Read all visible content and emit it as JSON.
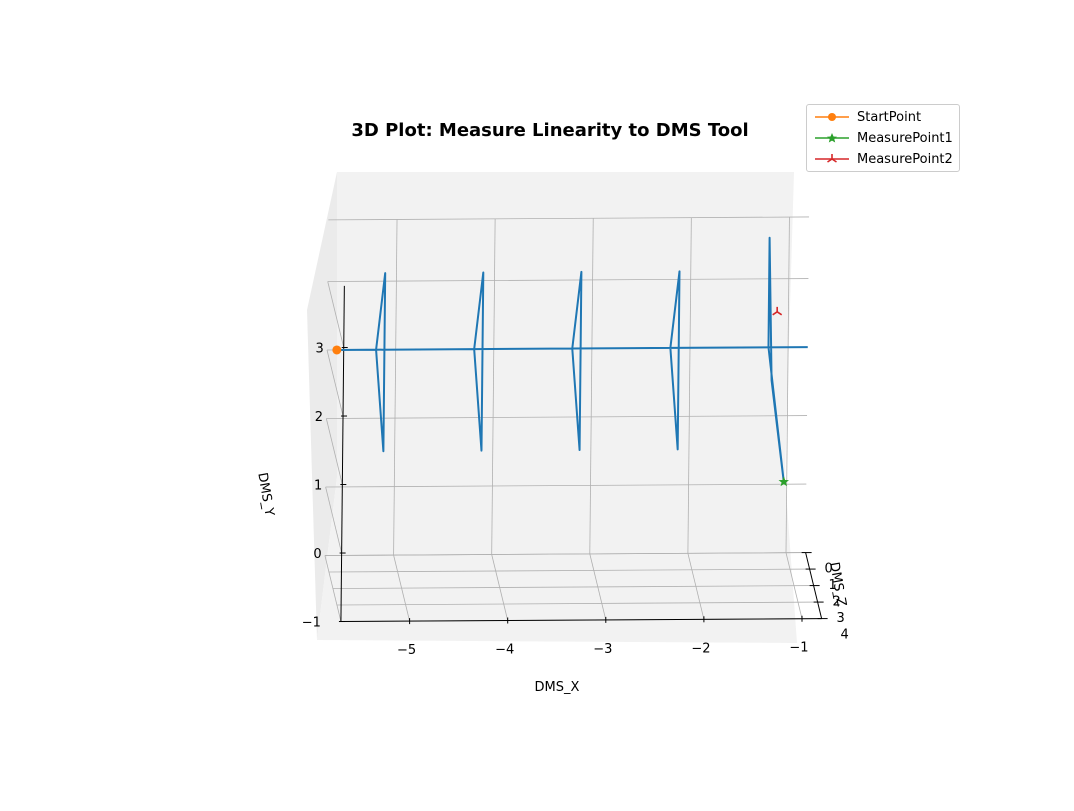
{
  "chart_data": {
    "type": "line",
    "projection": "3d",
    "title": "3D Plot: Measure Linearity to DMS Tool",
    "xlabel": "DMS_X",
    "ylabel": "DMS_Y",
    "zlabel": "DMS_Z",
    "xlim": [
      -5.7,
      -0.8
    ],
    "ylim": [
      -1,
      3.9
    ],
    "zlim": [
      -0.2,
      4
    ],
    "x_ticks": [
      "−5",
      "−4",
      "−3",
      "−2",
      "−1"
    ],
    "y_ticks": [
      "−1",
      "0",
      "1",
      "2",
      "3"
    ],
    "z_ticks": [
      "0",
      "1",
      "2",
      "3",
      "4"
    ],
    "grid": true,
    "legend_position": "top-right",
    "colors": {
      "path": "#1f77b4",
      "StartPoint": "#ff7f0e",
      "MeasurePoint1": "#2ca02c",
      "MeasurePoint2": "#d62728",
      "pane": "#f2f2f2",
      "grid": "#b0b0b0"
    },
    "series": [
      {
        "x": [
          -5.6,
          -1.2,
          -1.2,
          -1.25,
          -1.2,
          -1.2,
          -2.2,
          -2.2,
          -2.2,
          -2.2,
          -3.2,
          -3.2,
          -3.2,
          -3.2,
          -4.2,
          -4.2,
          -4.2,
          -4.2,
          -5.2,
          -5.2,
          -5.2,
          -5.2,
          -5.6,
          -0.8
        ],
        "y": [
          2.0,
          2.0,
          3.6,
          2.0,
          1.0,
          2.0,
          2.0,
          3.6,
          1.0,
          2.0,
          2.0,
          3.6,
          1.0,
          2.0,
          2.0,
          3.6,
          1.0,
          2.0,
          2.0,
          3.6,
          1.0,
          2.0,
          2.0,
          2.0
        ],
        "z": [
          0,
          0,
          0,
          2,
          4,
          0,
          0,
          2,
          2,
          0,
          0,
          2,
          2,
          0,
          0,
          2,
          2,
          0,
          0,
          2,
          2,
          0,
          0,
          0
        ]
      },
      {
        "name": "StartPoint",
        "marker": "o",
        "x": [
          -5.6
        ],
        "y": [
          2.0
        ],
        "z": [
          0
        ]
      },
      {
        "name": "MeasurePoint1",
        "marker": "*",
        "x": [
          -1.2
        ],
        "y": [
          1.0
        ],
        "z": [
          4
        ]
      },
      {
        "name": "MeasurePoint2",
        "marker": "2",
        "x": [
          -1.2
        ],
        "y": [
          3.0
        ],
        "z": [
          2
        ]
      }
    ]
  }
}
